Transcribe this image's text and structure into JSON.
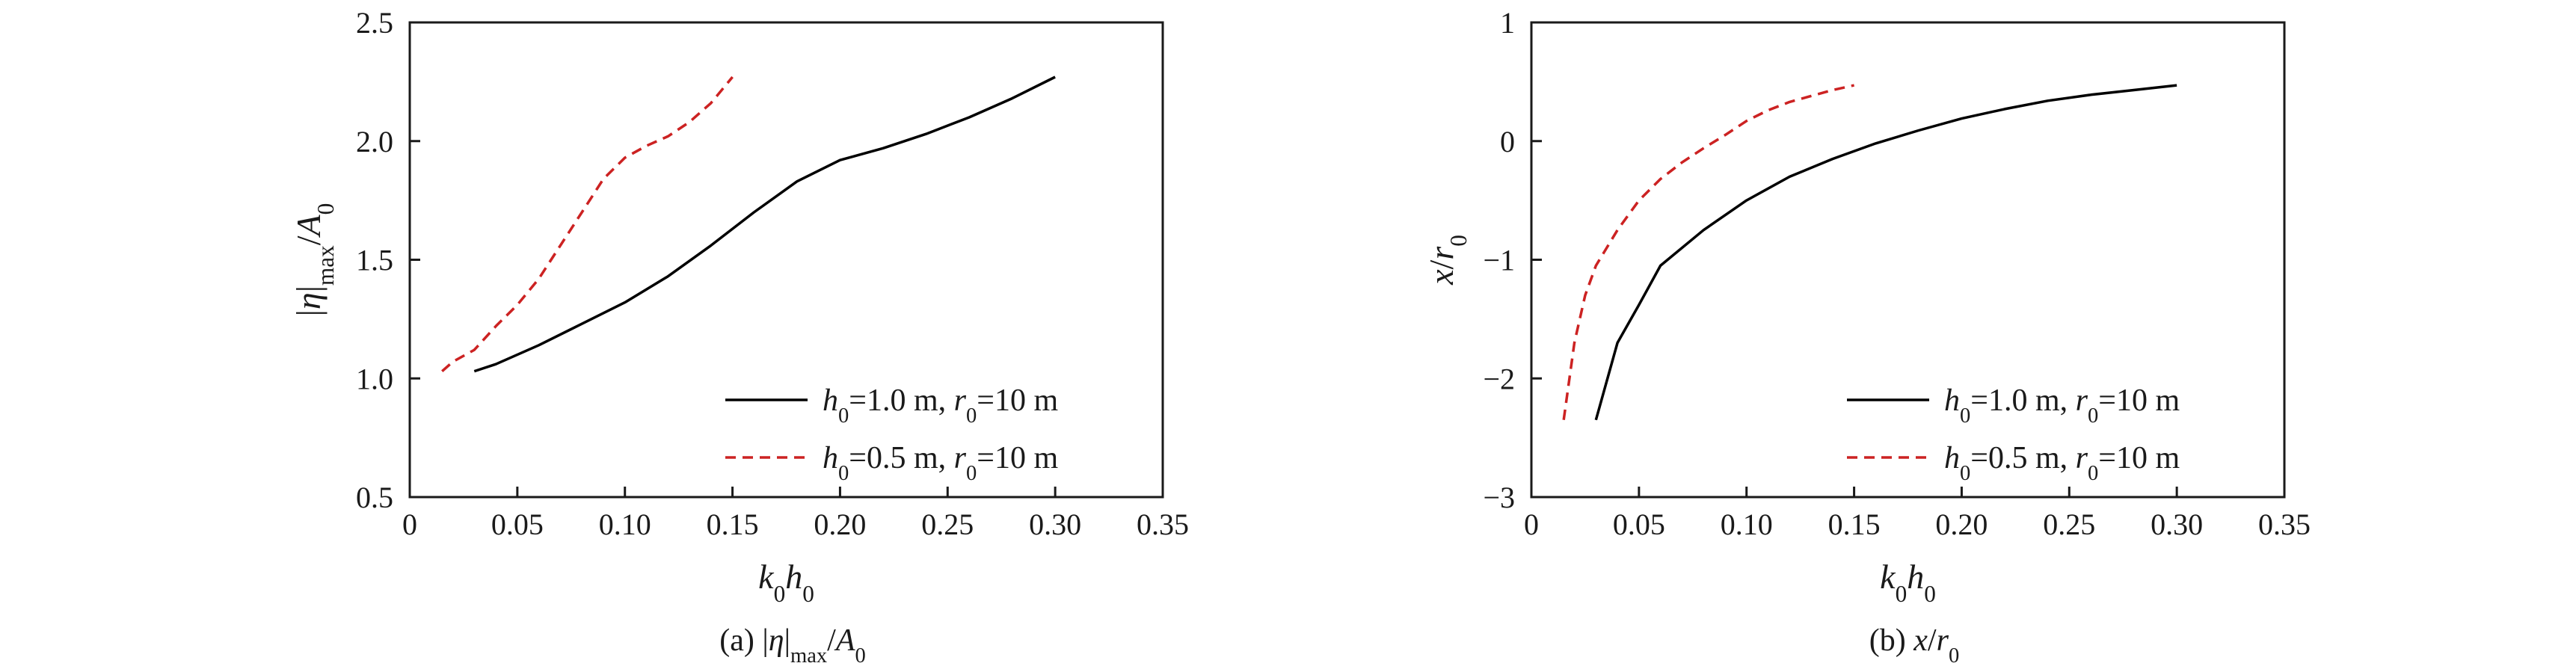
{
  "figure": {
    "captions": [
      "(a) |η|max/A0",
      "(b) x/r0"
    ]
  },
  "chart_data": [
    {
      "type": "line",
      "caption": "(a) |η|max/A0",
      "xlabel": "k0h0",
      "ylabel": "|η|max/A0",
      "xlim": [
        0,
        0.35
      ],
      "ylim": [
        0.5,
        2.5
      ],
      "xticks": [
        "0",
        "0.05",
        "0.10",
        "0.15",
        "0.20",
        "0.25",
        "0.30",
        "0.35"
      ],
      "yticks": [
        "0.5",
        "1.0",
        "1.5",
        "2.0",
        "2.5"
      ],
      "grid": false,
      "legend_position": "bottom-right",
      "series": [
        {
          "name": "h0=1.0 m, r0=10 m",
          "style": "solid",
          "color": "#000000",
          "points": [
            [
              0.03,
              1.03
            ],
            [
              0.04,
              1.06
            ],
            [
              0.06,
              1.14
            ],
            [
              0.08,
              1.23
            ],
            [
              0.1,
              1.32
            ],
            [
              0.12,
              1.43
            ],
            [
              0.14,
              1.56
            ],
            [
              0.16,
              1.7
            ],
            [
              0.18,
              1.83
            ],
            [
              0.2,
              1.92
            ],
            [
              0.22,
              1.97
            ],
            [
              0.24,
              2.03
            ],
            [
              0.26,
              2.1
            ],
            [
              0.28,
              2.18
            ],
            [
              0.3,
              2.27
            ]
          ]
        },
        {
          "name": "h0=0.5 m, r0=10 m",
          "style": "dashed",
          "color": "#cc2222",
          "points": [
            [
              0.015,
              1.03
            ],
            [
              0.02,
              1.07
            ],
            [
              0.03,
              1.12
            ],
            [
              0.04,
              1.22
            ],
            [
              0.05,
              1.31
            ],
            [
              0.06,
              1.42
            ],
            [
              0.07,
              1.56
            ],
            [
              0.08,
              1.7
            ],
            [
              0.09,
              1.84
            ],
            [
              0.1,
              1.93
            ],
            [
              0.11,
              1.98
            ],
            [
              0.12,
              2.02
            ],
            [
              0.13,
              2.08
            ],
            [
              0.14,
              2.16
            ],
            [
              0.15,
              2.27
            ]
          ]
        }
      ]
    },
    {
      "type": "line",
      "caption": "(b) x/r0",
      "xlabel": "k0h0",
      "ylabel": "x/r0",
      "xlim": [
        0,
        0.35
      ],
      "ylim": [
        -3,
        1
      ],
      "xticks": [
        "0",
        "0.05",
        "0.10",
        "0.15",
        "0.20",
        "0.25",
        "0.30",
        "0.35"
      ],
      "yticks": [
        "−3",
        "−2",
        "−1",
        "0",
        "1"
      ],
      "grid": false,
      "legend_position": "bottom-right",
      "series": [
        {
          "name": "h0=1.0 m, r0=10 m",
          "style": "solid",
          "color": "#000000",
          "points": [
            [
              0.03,
              -2.35
            ],
            [
              0.04,
              -1.7
            ],
            [
              0.05,
              -1.38
            ],
            [
              0.06,
              -1.05
            ],
            [
              0.08,
              -0.75
            ],
            [
              0.1,
              -0.5
            ],
            [
              0.12,
              -0.3
            ],
            [
              0.14,
              -0.15
            ],
            [
              0.16,
              -0.02
            ],
            [
              0.18,
              0.09
            ],
            [
              0.2,
              0.19
            ],
            [
              0.22,
              0.27
            ],
            [
              0.24,
              0.34
            ],
            [
              0.26,
              0.39
            ],
            [
              0.28,
              0.43
            ],
            [
              0.3,
              0.47
            ]
          ]
        },
        {
          "name": "h0=0.5 m, r0=10 m",
          "style": "dashed",
          "color": "#cc2222",
          "points": [
            [
              0.015,
              -2.35
            ],
            [
              0.02,
              -1.7
            ],
            [
              0.025,
              -1.3
            ],
            [
              0.03,
              -1.05
            ],
            [
              0.04,
              -0.75
            ],
            [
              0.05,
              -0.5
            ],
            [
              0.06,
              -0.32
            ],
            [
              0.07,
              -0.18
            ],
            [
              0.08,
              -0.06
            ],
            [
              0.09,
              0.05
            ],
            [
              0.1,
              0.17
            ],
            [
              0.11,
              0.26
            ],
            [
              0.12,
              0.33
            ],
            [
              0.13,
              0.38
            ],
            [
              0.14,
              0.43
            ],
            [
              0.15,
              0.47
            ]
          ]
        }
      ]
    }
  ]
}
